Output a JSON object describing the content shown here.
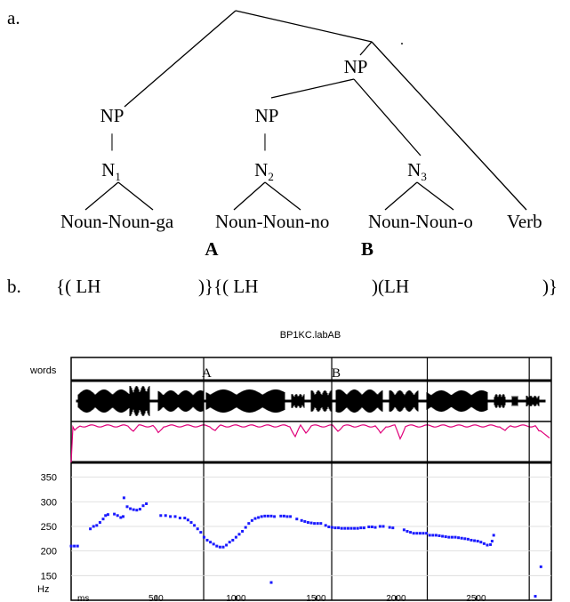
{
  "panel_a": {
    "label": "a.",
    "np_top": "NP",
    "np1": "NP",
    "np2": "NP",
    "n1": "N",
    "n1_sub": "1",
    "n2": "N",
    "n2_sub": "2",
    "n3": "N",
    "n3_sub": "3",
    "bar1": "|",
    "bar2": "|",
    "word1": "Noun-Noun-ga",
    "word2": "Noun-Noun-no",
    "word3": "Noun-Noun-o",
    "word4": "Verb",
    "mark_a": "A",
    "mark_b": "B",
    "dot": "."
  },
  "panel_b": {
    "label": "b.",
    "seg1": "{( LH",
    "seg2": ")}{( LH",
    "seg3": ")(LH",
    "seg4": ")}"
  },
  "figure": {
    "title": "BP1KC.labAB",
    "tier_label": "words",
    "boundary_a": "A",
    "boundary_b": "B",
    "y_unit": "Hz",
    "x_unit": "ms",
    "colors": {
      "waveform": "#000000",
      "energy": "#e0007a",
      "pitch": "#1a1aff"
    }
  },
  "chart_data": {
    "type": "scatter",
    "title": "BP1KC.labAB",
    "xlabel": "ms",
    "ylabel": "Hz",
    "xlim": [
      -30,
      2970
    ],
    "ylim": [
      100,
      380
    ],
    "x_ticks": [
      500,
      1000,
      1500,
      2000,
      2500
    ],
    "y_ticks": [
      150,
      200,
      250,
      300,
      350
    ],
    "boundaries_ms": [
      798,
      1598,
      2195,
      2832
    ],
    "series": [
      {
        "points": [
          [
            -30,
            210
          ],
          [
            -10,
            210
          ],
          [
            10,
            210
          ],
          [
            90,
            245
          ],
          [
            110,
            250
          ],
          [
            130,
            252
          ],
          [
            150,
            258
          ],
          [
            170,
            265
          ],
          [
            185,
            272
          ],
          [
            200,
            274
          ],
          [
            240,
            275
          ],
          [
            260,
            272
          ],
          [
            280,
            268
          ],
          [
            295,
            270
          ],
          [
            300,
            308
          ],
          [
            320,
            290
          ],
          [
            340,
            286
          ],
          [
            360,
            284
          ],
          [
            380,
            283
          ],
          [
            400,
            285
          ],
          [
            420,
            292
          ],
          [
            440,
            296
          ],
          [
            530,
            272
          ],
          [
            560,
            272
          ],
          [
            590,
            270
          ],
          [
            620,
            270
          ],
          [
            650,
            267
          ],
          [
            680,
            267
          ],
          [
            700,
            263
          ],
          [
            720,
            258
          ],
          [
            740,
            252
          ],
          [
            760,
            245
          ],
          [
            780,
            238
          ],
          [
            800,
            228
          ],
          [
            820,
            222
          ],
          [
            840,
            218
          ],
          [
            860,
            214
          ],
          [
            880,
            210
          ],
          [
            900,
            208
          ],
          [
            920,
            208
          ],
          [
            940,
            212
          ],
          [
            960,
            218
          ],
          [
            980,
            222
          ],
          [
            1000,
            228
          ],
          [
            1020,
            234
          ],
          [
            1040,
            240
          ],
          [
            1060,
            248
          ],
          [
            1080,
            256
          ],
          [
            1100,
            262
          ],
          [
            1120,
            266
          ],
          [
            1140,
            268
          ],
          [
            1160,
            270
          ],
          [
            1180,
            271
          ],
          [
            1200,
            271
          ],
          [
            1220,
            271
          ],
          [
            1240,
            270
          ],
          [
            1280,
            271
          ],
          [
            1300,
            271
          ],
          [
            1320,
            270
          ],
          [
            1340,
            270
          ],
          [
            1380,
            265
          ],
          [
            1410,
            262
          ],
          [
            1430,
            260
          ],
          [
            1450,
            258
          ],
          [
            1470,
            257
          ],
          [
            1490,
            256
          ],
          [
            1510,
            256
          ],
          [
            1530,
            256
          ],
          [
            1560,
            252
          ],
          [
            1580,
            249
          ],
          [
            1600,
            248
          ],
          [
            1620,
            247
          ],
          [
            1640,
            247
          ],
          [
            1660,
            246
          ],
          [
            1680,
            246
          ],
          [
            1700,
            246
          ],
          [
            1720,
            246
          ],
          [
            1740,
            246
          ],
          [
            1760,
            246
          ],
          [
            1780,
            247
          ],
          [
            1800,
            247
          ],
          [
            1830,
            249
          ],
          [
            1850,
            249
          ],
          [
            1870,
            248
          ],
          [
            1900,
            250
          ],
          [
            1920,
            250
          ],
          [
            1960,
            248
          ],
          [
            1980,
            247
          ],
          [
            2050,
            243
          ],
          [
            2070,
            240
          ],
          [
            2090,
            238
          ],
          [
            2110,
            236
          ],
          [
            2130,
            236
          ],
          [
            2150,
            236
          ],
          [
            2170,
            236
          ],
          [
            2190,
            236
          ],
          [
            2210,
            232
          ],
          [
            2230,
            232
          ],
          [
            2250,
            232
          ],
          [
            2270,
            231
          ],
          [
            2290,
            230
          ],
          [
            2310,
            229
          ],
          [
            2330,
            228
          ],
          [
            2350,
            228
          ],
          [
            2370,
            228
          ],
          [
            2390,
            227
          ],
          [
            2410,
            226
          ],
          [
            2430,
            225
          ],
          [
            2450,
            224
          ],
          [
            2470,
            222
          ],
          [
            2490,
            221
          ],
          [
            2510,
            220
          ],
          [
            2530,
            218
          ],
          [
            2550,
            215
          ],
          [
            2570,
            212
          ],
          [
            2590,
            213
          ],
          [
            2600,
            220
          ],
          [
            2610,
            232
          ],
          [
            1220,
            136
          ],
          [
            2870,
            108
          ],
          [
            2905,
            168
          ]
        ]
      }
    ]
  }
}
